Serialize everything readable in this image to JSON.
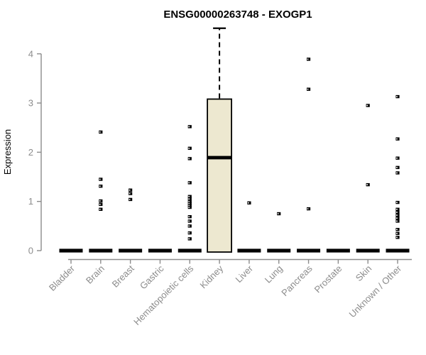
{
  "colors": {
    "background": "#ffffff",
    "title": "#000000",
    "axis_line": "#8c8c8c",
    "axis_text": "#8c8c8c",
    "box_fill": "#ede8d0",
    "box_stroke": "#000000",
    "median": "#000000",
    "whisker": "#000000",
    "point": "#000000",
    "point_hole": "#ffffff"
  },
  "chart_data": {
    "type": "boxplot",
    "title": "ENSG00000263748 - EXOGP1",
    "ylabel": "Expression",
    "xlabel": "",
    "yticks": [
      0,
      1,
      2,
      3,
      4
    ],
    "ylim": [
      0,
      4.6
    ],
    "grid": false,
    "legend": "none",
    "categories": [
      "Bladder",
      "Brain",
      "Breast",
      "Gastric",
      "Hematopoietic cells",
      "Kidney",
      "Liver",
      "Lung",
      "Pancreas",
      "Prostate",
      "Skin",
      "Unknown / Other"
    ],
    "boxes": [
      {
        "category": "Bladder",
        "q1": 0,
        "median": 0,
        "q3": 0,
        "whisker_low": 0,
        "whisker_high": 0,
        "outliers": []
      },
      {
        "category": "Brain",
        "q1": 0,
        "median": 0,
        "q3": 0,
        "whisker_low": 0,
        "whisker_high": 0,
        "outliers": [
          2.41,
          1.45,
          1.31,
          1.01,
          0.94,
          0.84
        ]
      },
      {
        "category": "Breast",
        "q1": 0,
        "median": 0,
        "q3": 0,
        "whisker_low": 0,
        "whisker_high": 0,
        "outliers": [
          1.23,
          1.16,
          1.04
        ]
      },
      {
        "category": "Gastric",
        "q1": 0,
        "median": 0,
        "q3": 0,
        "whisker_low": 0,
        "whisker_high": 0,
        "outliers": []
      },
      {
        "category": "Hematopoietic cells",
        "q1": 0,
        "median": 0,
        "q3": 0,
        "whisker_low": 0,
        "whisker_high": 0,
        "outliers": [
          2.52,
          2.08,
          1.87,
          1.38,
          1.1,
          1.05,
          1.0,
          0.96,
          0.92,
          0.88,
          0.69,
          0.6,
          0.5,
          0.36,
          0.24
        ]
      },
      {
        "category": "Kidney",
        "q1": 0,
        "median": 1.89,
        "q3": 3.08,
        "whisker_low": 0,
        "whisker_high": 4.52,
        "outliers": []
      },
      {
        "category": "Liver",
        "q1": 0,
        "median": 0,
        "q3": 0,
        "whisker_low": 0,
        "whisker_high": 0,
        "outliers": [
          0.97
        ]
      },
      {
        "category": "Lung",
        "q1": 0,
        "median": 0,
        "q3": 0,
        "whisker_low": 0,
        "whisker_high": 0,
        "outliers": [
          0.75
        ]
      },
      {
        "category": "Pancreas",
        "q1": 0,
        "median": 0,
        "q3": 0,
        "whisker_low": 0,
        "whisker_high": 0,
        "outliers": [
          3.89,
          3.28,
          0.85
        ]
      },
      {
        "category": "Prostate",
        "q1": 0,
        "median": 0,
        "q3": 0,
        "whisker_low": 0,
        "whisker_high": 0,
        "outliers": []
      },
      {
        "category": "Skin",
        "q1": 0,
        "median": 0,
        "q3": 0,
        "whisker_low": 0,
        "whisker_high": 0,
        "outliers": [
          2.95,
          1.34
        ]
      },
      {
        "category": "Unknown / Other",
        "q1": 0,
        "median": 0,
        "q3": 0,
        "whisker_low": 0,
        "whisker_high": 0,
        "outliers": [
          3.13,
          2.27,
          1.88,
          1.69,
          1.58,
          0.98,
          0.84,
          0.78,
          0.72,
          0.66,
          0.6,
          0.43,
          0.35,
          0.27
        ]
      }
    ]
  }
}
